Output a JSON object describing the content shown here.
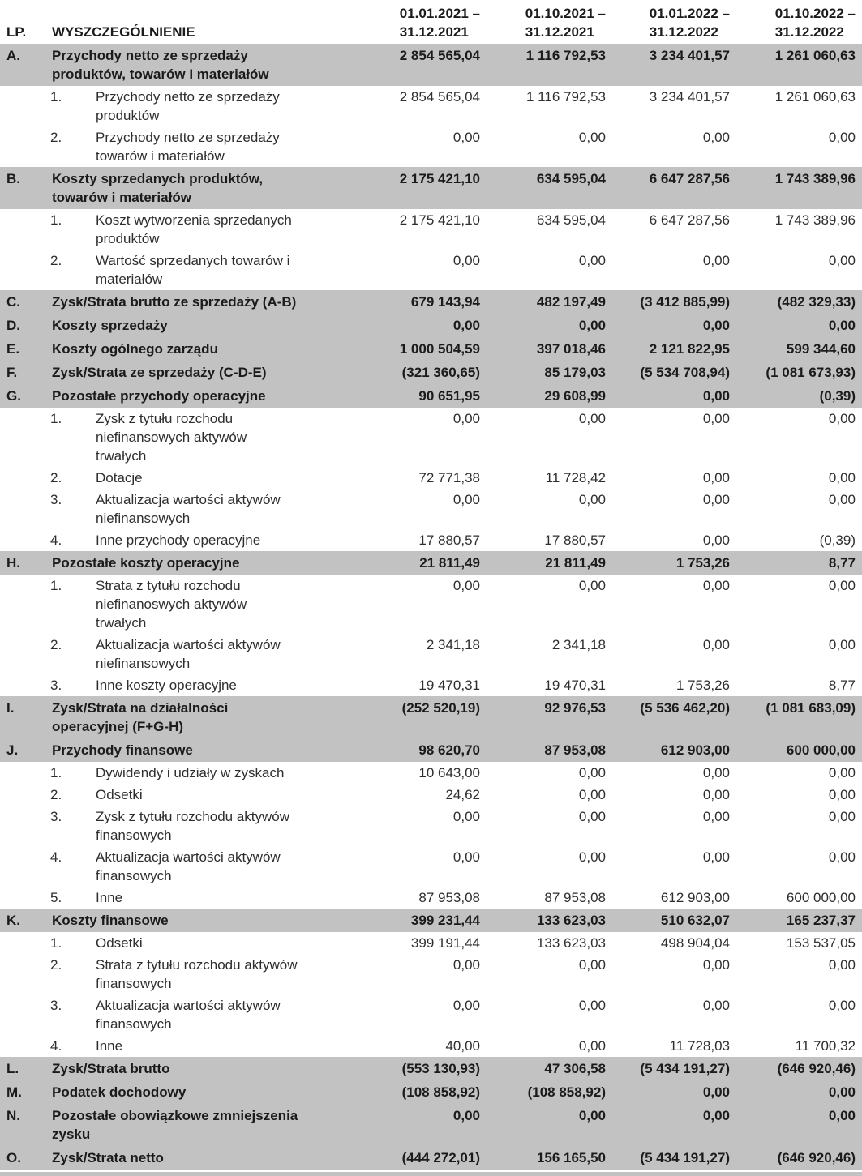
{
  "colors": {
    "section_row_bg": "#c2c2c2",
    "text": "#1b1b1b"
  },
  "header": {
    "lp": "LP.",
    "name": "WYSZCZEGÓLNIENIE",
    "periods": [
      "01.01.2021 –\n31.12.2021",
      "01.10.2021 –\n31.12.2021",
      "01.01.2022 –\n31.12.2022",
      "01.10.2022 –\n31.12.2022"
    ]
  },
  "rows": [
    {
      "type": "section",
      "lp": "A.",
      "label": "Przychody netto ze sprzedaży\nproduktów, towarów I materiałów",
      "values": [
        "2 854 565,04",
        "1 116 792,53",
        "3 234 401,57",
        "1 261 060,63"
      ]
    },
    {
      "type": "sub",
      "lp": "1.",
      "label": "Przychody netto ze sprzedaży\nproduktów",
      "values": [
        "2 854 565,04",
        "1 116 792,53",
        "3 234 401,57",
        "1 261 060,63"
      ]
    },
    {
      "type": "sub",
      "lp": "2.",
      "label": "Przychody netto ze sprzedaży\ntowarów i materiałów",
      "values": [
        "0,00",
        "0,00",
        "0,00",
        "0,00"
      ]
    },
    {
      "type": "section",
      "lp": "B.",
      "label": "Koszty sprzedanych produktów,\ntowarów i materiałów",
      "values": [
        "2 175 421,10",
        "634 595,04",
        "6 647 287,56",
        "1 743 389,96"
      ]
    },
    {
      "type": "sub",
      "lp": "1.",
      "label": "Koszt wytworzenia sprzedanych\nproduktów",
      "values": [
        "2 175 421,10",
        "634 595,04",
        "6 647 287,56",
        "1 743 389,96"
      ]
    },
    {
      "type": "sub",
      "lp": "2.",
      "label": "Wartość sprzedanych towarów i\nmateriałów",
      "values": [
        "0,00",
        "0,00",
        "0,00",
        "0,00"
      ]
    },
    {
      "type": "section",
      "lp": "C.",
      "label": "Zysk/Strata brutto ze sprzedaży (A-B)",
      "values": [
        "679 143,94",
        "482 197,49",
        "(3 412 885,99)",
        "(482 329,33)"
      ]
    },
    {
      "type": "section",
      "lp": "D.",
      "label": "Koszty sprzedaży",
      "values": [
        "0,00",
        "0,00",
        "0,00",
        "0,00"
      ]
    },
    {
      "type": "section",
      "lp": "E.",
      "label": "Koszty ogólnego zarządu",
      "values": [
        "1 000 504,59",
        "397 018,46",
        "2 121 822,95",
        "599 344,60"
      ]
    },
    {
      "type": "section",
      "lp": "F.",
      "label": "Zysk/Strata ze sprzedaży (C-D-E)",
      "values": [
        "(321 360,65)",
        "85 179,03",
        "(5 534 708,94)",
        "(1 081 673,93)"
      ]
    },
    {
      "type": "section",
      "lp": "G.",
      "label": "Pozostałe przychody operacyjne",
      "values": [
        "90 651,95",
        "29 608,99",
        "0,00",
        "(0,39)"
      ]
    },
    {
      "type": "sub",
      "lp": "1.",
      "label": "Zysk z tytułu rozchodu\nniefinansowych aktywów\ntrwałych",
      "values": [
        "0,00",
        "0,00",
        "0,00",
        "0,00"
      ]
    },
    {
      "type": "sub",
      "lp": "2.",
      "label": "Dotacje",
      "values": [
        "72 771,38",
        "11 728,42",
        "0,00",
        "0,00"
      ]
    },
    {
      "type": "sub",
      "lp": "3.",
      "label": "Aktualizacja wartości aktywów\nniefinansowych",
      "values": [
        "0,00",
        "0,00",
        "0,00",
        "0,00"
      ]
    },
    {
      "type": "sub",
      "lp": "4.",
      "label": "Inne przychody operacyjne",
      "values": [
        "17 880,57",
        "17 880,57",
        "0,00",
        "(0,39)"
      ]
    },
    {
      "type": "section",
      "lp": "H.",
      "label": "Pozostałe koszty operacyjne",
      "values": [
        "21 811,49",
        "21 811,49",
        "1 753,26",
        "8,77"
      ]
    },
    {
      "type": "sub",
      "lp": "1.",
      "label": "Strata z tytułu rozchodu\nniefinanoswych aktywów\ntrwałych",
      "values": [
        "0,00",
        "0,00",
        "0,00",
        "0,00"
      ]
    },
    {
      "type": "sub",
      "lp": "2.",
      "label": "Aktualizacja wartości aktywów\nniefinansowych",
      "values": [
        "2 341,18",
        "2 341,18",
        "0,00",
        "0,00"
      ]
    },
    {
      "type": "sub",
      "lp": "3.",
      "label": "Inne koszty operacyjne",
      "values": [
        "19 470,31",
        "19 470,31",
        "1 753,26",
        "8,77"
      ]
    },
    {
      "type": "section",
      "lp": "I.",
      "label": "Zysk/Strata na działalności\noperacyjnej (F+G-H)",
      "values": [
        "(252 520,19)",
        "92 976,53",
        "(5 536 462,20)",
        "(1 081 683,09)"
      ]
    },
    {
      "type": "section",
      "lp": "J.",
      "label": "Przychody finansowe",
      "values": [
        "98 620,70",
        "87 953,08",
        "612 903,00",
        "600 000,00"
      ]
    },
    {
      "type": "sub",
      "lp": "1.",
      "label": "Dywidendy i udziały w zyskach",
      "values": [
        "10 643,00",
        "0,00",
        "0,00",
        "0,00"
      ]
    },
    {
      "type": "sub",
      "lp": "2.",
      "label": "Odsetki",
      "values": [
        "24,62",
        "0,00",
        "0,00",
        "0,00"
      ]
    },
    {
      "type": "sub",
      "lp": "3.",
      "label": "Zysk z tytułu rozchodu aktywów\nfinansowych",
      "values": [
        "0,00",
        "0,00",
        "0,00",
        "0,00"
      ]
    },
    {
      "type": "sub",
      "lp": "4.",
      "label": "Aktualizacja wartości aktywów\nfinansowych",
      "values": [
        "0,00",
        "0,00",
        "0,00",
        "0,00"
      ]
    },
    {
      "type": "sub",
      "lp": "5.",
      "label": "Inne",
      "values": [
        "87 953,08",
        "87 953,08",
        "612 903,00",
        "600 000,00"
      ]
    },
    {
      "type": "section",
      "lp": "K.",
      "label": "Koszty finansowe",
      "values": [
        "399 231,44",
        "133 623,03",
        "510 632,07",
        "165 237,37"
      ]
    },
    {
      "type": "sub",
      "lp": "1.",
      "label": "Odsetki",
      "values": [
        "399 191,44",
        "133 623,03",
        "498 904,04",
        "153 537,05"
      ]
    },
    {
      "type": "sub",
      "lp": "2.",
      "label": "Strata z tytułu rozchodu aktywów\nfinansowych",
      "values": [
        "0,00",
        "0,00",
        "0,00",
        "0,00"
      ]
    },
    {
      "type": "sub",
      "lp": "3.",
      "label": "Aktualizacja wartości aktywów\nfinansowych",
      "values": [
        "0,00",
        "0,00",
        "0,00",
        "0,00"
      ]
    },
    {
      "type": "sub",
      "lp": "4.",
      "label": "Inne",
      "values": [
        "40,00",
        "0,00",
        "11 728,03",
        "11 700,32"
      ]
    },
    {
      "type": "section",
      "lp": "L.",
      "label": "Zysk/Strata brutto",
      "values": [
        "(553 130,93)",
        "47 306,58",
        "(5 434 191,27)",
        "(646 920,46)"
      ]
    },
    {
      "type": "section",
      "lp": "M.",
      "label": "Podatek dochodowy",
      "values": [
        "(108 858,92)",
        "(108 858,92)",
        "0,00",
        "0,00"
      ]
    },
    {
      "type": "section",
      "lp": "N.",
      "label": "Pozostałe obowiązkowe zmniejszenia\nzysku",
      "values": [
        "0,00",
        "0,00",
        "0,00",
        "0,00"
      ]
    },
    {
      "type": "section",
      "lp": "O.",
      "label": "Zysk/Strata netto",
      "values": [
        "(444 272,01)",
        "156 165,50",
        "(5 434 191,27)",
        "(646 920,46)"
      ]
    }
  ]
}
